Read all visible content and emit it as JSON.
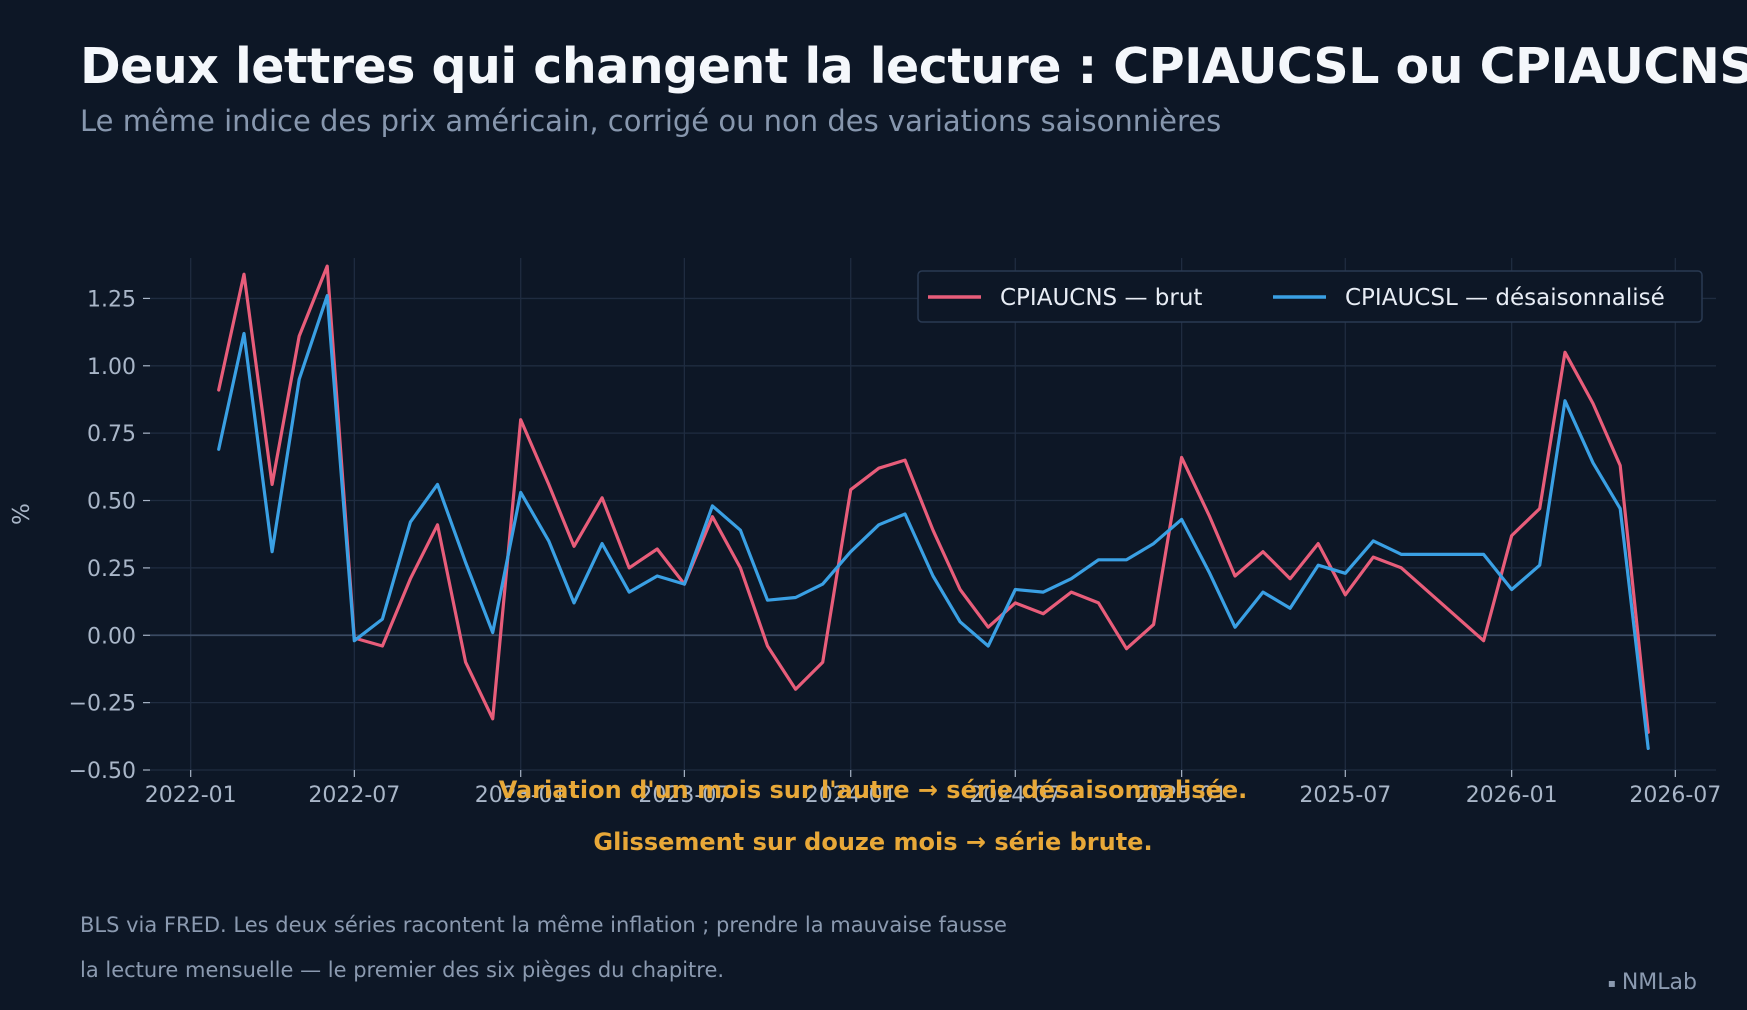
{
  "header": {
    "title": "Deux lettres qui changent la lecture : CPIAUCSL ou CPIAUCNS",
    "subtitle": "Le même indice des prix américain, corrigé ou non des variations saisonnières"
  },
  "footer": {
    "caption_line1": "BLS via FRED. Les deux séries racontent la même inflation ; prendre la mauvaise fausse",
    "caption_line2": "la lecture mensuelle — le premier des six pièges du chapitre.",
    "brand_mark": "▪",
    "brand": "NMLab"
  },
  "colors": {
    "background": "#0d1726",
    "grid": "#1f2c40",
    "zero_line": "#3a4a62",
    "raw_series": "#e85d7a",
    "sa_series": "#3aa0e4",
    "annotation": "#e8a838",
    "tick_text": "#a9b6c8"
  },
  "chart_data": {
    "type": "line",
    "title": "Deux lettres qui changent la lecture : CPIAUCSL ou CPIAUCNS",
    "subtitle": "Le même indice des prix américain, corrigé ou non des variations saisonnières",
    "xlabel": "",
    "ylabel": "%",
    "xlim": [
      "2021-11-17",
      "2026-08-15"
    ],
    "ylim": [
      -0.5,
      1.4
    ],
    "grid": true,
    "legend": "top-right",
    "x_ticks": [
      "2022-01",
      "2022-07",
      "2023-01",
      "2023-07",
      "2024-01",
      "2024-07",
      "2025-01",
      "2025-07",
      "2026-01",
      "2026-07"
    ],
    "y_ticks": [
      -0.5,
      -0.25,
      0.0,
      0.25,
      0.5,
      0.75,
      1.0,
      1.25
    ],
    "y_tick_labels": [
      "−0.50",
      "−0.25",
      "0.00",
      "0.25",
      "0.50",
      "0.75",
      "1.00",
      "1.25"
    ],
    "series": [
      {
        "name": "CPIAUCNS — brut",
        "color": "#e85d7a",
        "points": [
          [
            "2022-02",
            0.91
          ],
          [
            "2022-03",
            1.34
          ],
          [
            "2022-04",
            0.56
          ],
          [
            "2022-05",
            1.11
          ],
          [
            "2022-06",
            1.37
          ],
          [
            "2022-07",
            -0.01
          ],
          [
            "2022-08",
            -0.04
          ],
          [
            "2022-09",
            0.21
          ],
          [
            "2022-10",
            0.41
          ],
          [
            "2022-11",
            -0.1
          ],
          [
            "2022-12",
            -0.31
          ],
          [
            "2023-01",
            0.8
          ],
          [
            "2023-02",
            0.56
          ],
          [
            "2023-03",
            0.33
          ],
          [
            "2023-04",
            0.51
          ],
          [
            "2023-05",
            0.25
          ],
          [
            "2023-06",
            0.32
          ],
          [
            "2023-07",
            0.19
          ],
          [
            "2023-08",
            0.44
          ],
          [
            "2023-09",
            0.25
          ],
          [
            "2023-10",
            -0.04
          ],
          [
            "2023-11",
            -0.2
          ],
          [
            "2023-12",
            -0.1
          ],
          [
            "2024-01",
            0.54
          ],
          [
            "2024-02",
            0.62
          ],
          [
            "2024-03",
            0.65
          ],
          [
            "2024-04",
            0.39
          ],
          [
            "2024-05",
            0.17
          ],
          [
            "2024-06",
            0.03
          ],
          [
            "2024-07",
            0.12
          ],
          [
            "2024-08",
            0.08
          ],
          [
            "2024-09",
            0.16
          ],
          [
            "2024-10",
            0.12
          ],
          [
            "2024-11",
            -0.05
          ],
          [
            "2024-12",
            0.04
          ],
          [
            "2025-01",
            0.66
          ],
          [
            "2025-02",
            0.44
          ],
          [
            "2025-03",
            0.22
          ],
          [
            "2025-04",
            0.31
          ],
          [
            "2025-05",
            0.21
          ],
          [
            "2025-06",
            0.34
          ],
          [
            "2025-07",
            0.15
          ],
          [
            "2025-08",
            0.29
          ],
          [
            "2025-09",
            0.25
          ],
          [
            "2025-12",
            -0.02
          ],
          [
            "2026-01",
            0.37
          ],
          [
            "2026-02",
            0.47
          ],
          [
            "2026-03",
            1.05
          ],
          [
            "2026-04",
            0.86
          ],
          [
            "2026-05",
            0.63
          ],
          [
            "2026-06",
            -0.36
          ]
        ]
      },
      {
        "name": "CPIAUCSL — désaisonnalisé",
        "color": "#3aa0e4",
        "points": [
          [
            "2022-02",
            0.69
          ],
          [
            "2022-03",
            1.12
          ],
          [
            "2022-04",
            0.31
          ],
          [
            "2022-05",
            0.95
          ],
          [
            "2022-06",
            1.26
          ],
          [
            "2022-07",
            -0.02
          ],
          [
            "2022-08",
            0.06
          ],
          [
            "2022-09",
            0.42
          ],
          [
            "2022-10",
            0.56
          ],
          [
            "2022-11",
            0.27
          ],
          [
            "2022-12",
            0.01
          ],
          [
            "2023-01",
            0.53
          ],
          [
            "2023-02",
            0.35
          ],
          [
            "2023-03",
            0.12
          ],
          [
            "2023-04",
            0.34
          ],
          [
            "2023-05",
            0.16
          ],
          [
            "2023-06",
            0.22
          ],
          [
            "2023-07",
            0.19
          ],
          [
            "2023-08",
            0.48
          ],
          [
            "2023-09",
            0.39
          ],
          [
            "2023-10",
            0.13
          ],
          [
            "2023-11",
            0.14
          ],
          [
            "2023-12",
            0.19
          ],
          [
            "2024-01",
            0.31
          ],
          [
            "2024-02",
            0.41
          ],
          [
            "2024-03",
            0.45
          ],
          [
            "2024-04",
            0.22
          ],
          [
            "2024-05",
            0.05
          ],
          [
            "2024-06",
            -0.04
          ],
          [
            "2024-07",
            0.17
          ],
          [
            "2024-08",
            0.16
          ],
          [
            "2024-09",
            0.21
          ],
          [
            "2024-10",
            0.28
          ],
          [
            "2024-11",
            0.28
          ],
          [
            "2024-12",
            0.34
          ],
          [
            "2025-01",
            0.43
          ],
          [
            "2025-02",
            0.23
          ],
          [
            "2025-03",
            0.03
          ],
          [
            "2025-04",
            0.16
          ],
          [
            "2025-05",
            0.1
          ],
          [
            "2025-06",
            0.26
          ],
          [
            "2025-07",
            0.23
          ],
          [
            "2025-08",
            0.35
          ],
          [
            "2025-09",
            0.3
          ],
          [
            "2025-12",
            0.3
          ],
          [
            "2026-01",
            0.17
          ],
          [
            "2026-02",
            0.26
          ],
          [
            "2026-03",
            0.87
          ],
          [
            "2026-04",
            0.64
          ],
          [
            "2026-05",
            0.47
          ],
          [
            "2026-06",
            -0.42
          ]
        ]
      }
    ],
    "annotations": [
      "Variation d'un mois sur l'autre → série désaisonnalisée.",
      "Glissement sur douze mois → série brute."
    ]
  }
}
